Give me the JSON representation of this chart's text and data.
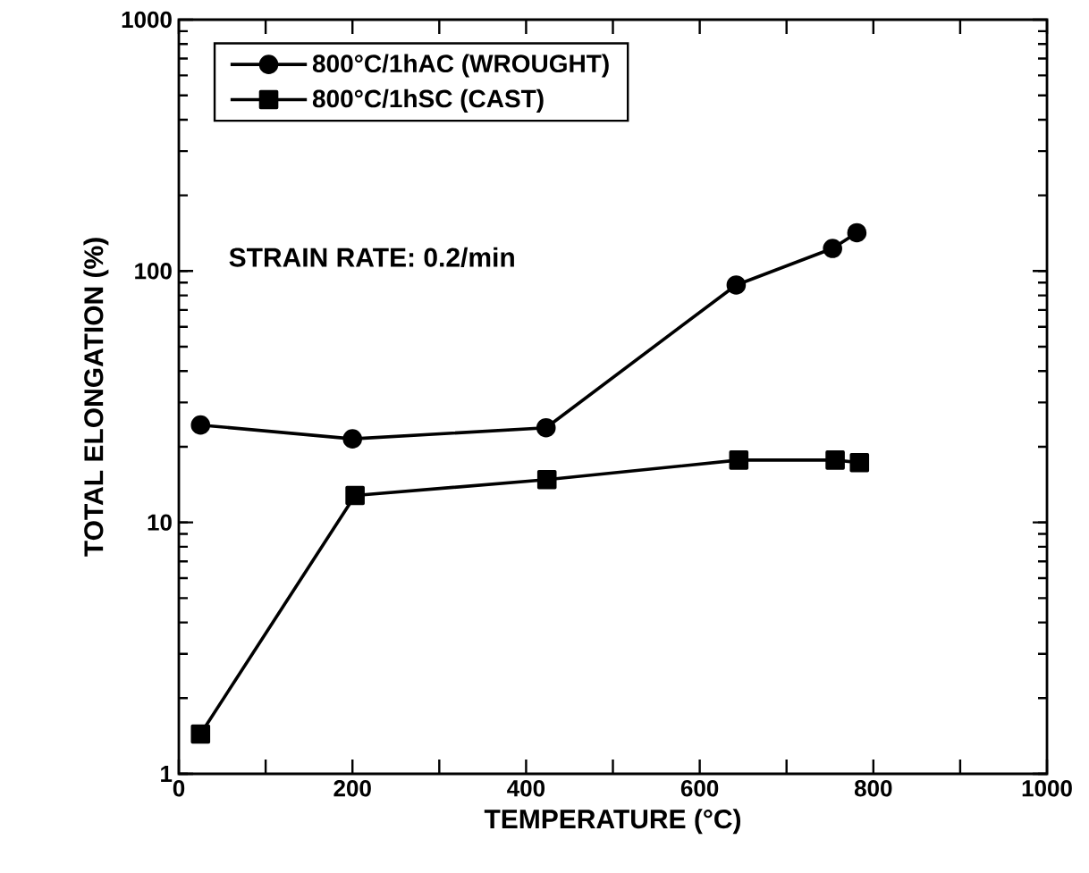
{
  "chart_data": {
    "type": "line",
    "xlabel": "TEMPERATURE  (°C)",
    "ylabel": "TOTAL  ELONGATION  (%)",
    "series": [
      {
        "name": "800°C/1hAC (WROUGHT)",
        "color": "#000000",
        "marker": "circle",
        "x": [
          25,
          200,
          423,
          642,
          753,
          781
        ],
        "values": [
          24.4,
          21.5,
          23.8,
          88,
          123,
          142
        ]
      },
      {
        "name": "800°C/1hSC (CAST)",
        "color": "#000000",
        "marker": "square",
        "x": [
          25,
          203,
          424,
          645,
          756,
          784
        ],
        "values": [
          1.44,
          12.8,
          14.8,
          17.7,
          17.7,
          17.3
        ]
      }
    ],
    "xlim": [
      0,
      1000
    ],
    "ylim": [
      1,
      1000
    ],
    "log": "y",
    "xticks": [
      0,
      {
        "value": 100,
        "label": null
      },
      200,
      {
        "value": 300,
        "label": null
      },
      400,
      {
        "value": 500,
        "label": null
      },
      600,
      {
        "value": 700,
        "label": null
      },
      800,
      {
        "value": 900,
        "label": null
      },
      1000
    ],
    "yticks": [
      1,
      10,
      100,
      1000
    ],
    "annotations": [
      "STRAIN   RATE:  0.2/min"
    ],
    "legend": "top left",
    "line_style": "solid",
    "grid": false
  }
}
